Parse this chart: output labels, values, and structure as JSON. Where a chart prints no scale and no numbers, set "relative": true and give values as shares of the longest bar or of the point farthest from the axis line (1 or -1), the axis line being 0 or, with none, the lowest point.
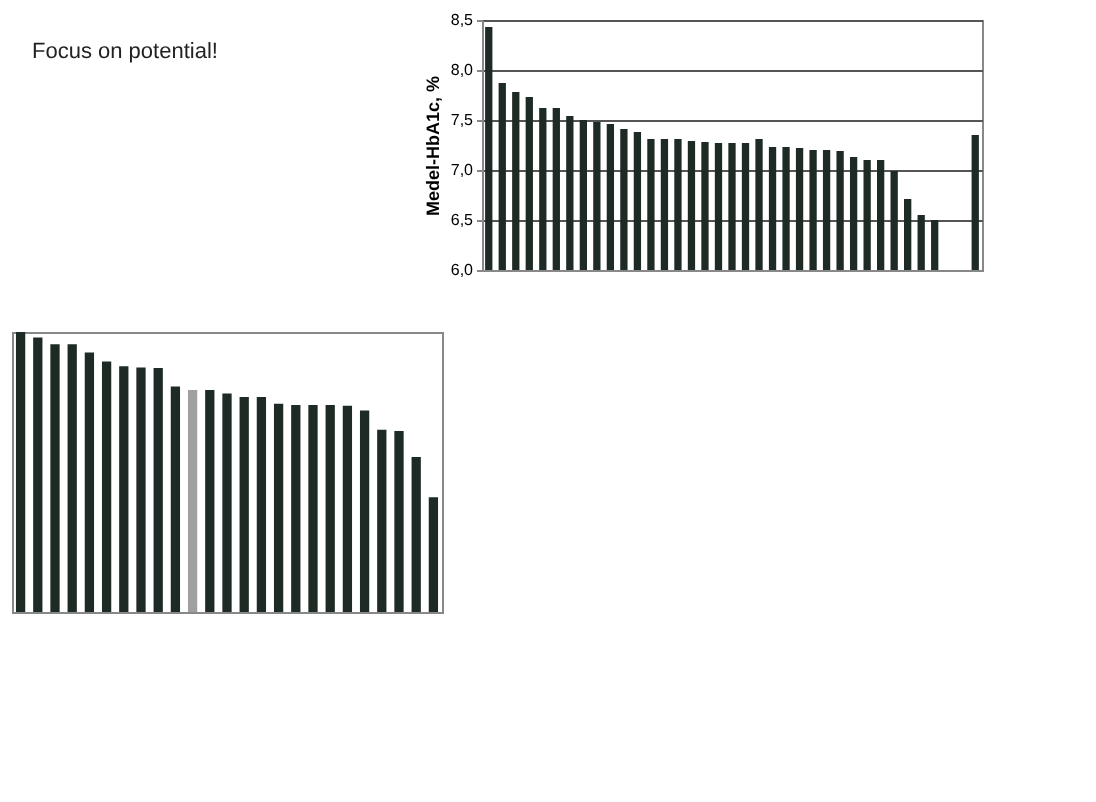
{
  "chart_data": [
    {
      "type": "bar",
      "annotations": [
        "Focus on potential!"
      ],
      "ylabel": "Medel-HbA1c, %",
      "categories": [
        null,
        null,
        null,
        null,
        null,
        null,
        null,
        null,
        null,
        null,
        null,
        null,
        null,
        null,
        null,
        null,
        null,
        null,
        null,
        null,
        null,
        null,
        null,
        null,
        null,
        null,
        null,
        null,
        null,
        null,
        null,
        null,
        null,
        null,
        null,
        null,
        null
      ],
      "values": [
        8.43,
        7.87,
        7.78,
        7.73,
        7.62,
        7.62,
        7.54,
        7.5,
        7.48,
        7.46,
        7.41,
        7.38,
        7.31,
        7.31,
        7.31,
        7.29,
        7.28,
        7.27,
        7.27,
        7.27,
        7.31,
        7.23,
        7.23,
        7.22,
        7.2,
        7.2,
        7.19,
        7.13,
        7.1,
        7.1,
        6.99,
        6.71,
        6.55,
        6.5,
        null,
        null,
        7.35
      ],
      "color": "#1e2b25",
      "ylim": [
        6.0,
        8.5
      ],
      "yticks": [
        {
          "value": 6.0,
          "label": "6,0"
        },
        {
          "value": 6.5,
          "label": "6,5"
        },
        {
          "value": 7.0,
          "label": "7,0"
        },
        {
          "value": 7.5,
          "label": "7,5"
        },
        {
          "value": 8.0,
          "label": "8,0"
        },
        {
          "value": 8.5,
          "label": "8,5"
        }
      ],
      "grid": "y",
      "tick_labels": "y"
    },
    {
      "type": "bar",
      "relative": true,
      "categories": [
        null,
        null,
        null,
        null,
        null,
        null,
        null,
        null,
        null,
        null,
        null,
        null,
        null,
        null,
        null,
        null,
        null,
        null,
        null,
        null,
        null,
        null,
        null,
        null,
        null
      ],
      "values": [
        1.0,
        0.98,
        0.956,
        0.956,
        0.927,
        0.895,
        0.878,
        0.873,
        0.871,
        0.805,
        0.793,
        0.793,
        0.78,
        0.768,
        0.768,
        0.744,
        0.739,
        0.739,
        0.739,
        0.737,
        0.72,
        0.651,
        0.646,
        0.554,
        0.41
      ],
      "colors": [
        "#1e2b25",
        "#1e2b25",
        "#1e2b25",
        "#1e2b25",
        "#1e2b25",
        "#1e2b25",
        "#1e2b25",
        "#1e2b25",
        "#1e2b25",
        "#1e2b25",
        "#a0a0a0",
        "#1e2b25",
        "#1e2b25",
        "#1e2b25",
        "#1e2b25",
        "#1e2b25",
        "#1e2b25",
        "#1e2b25",
        "#1e2b25",
        "#1e2b25",
        "#1e2b25",
        "#1e2b25",
        "#1e2b25",
        "#1e2b25",
        "#1e2b25"
      ],
      "tick_labels": false
    }
  ]
}
